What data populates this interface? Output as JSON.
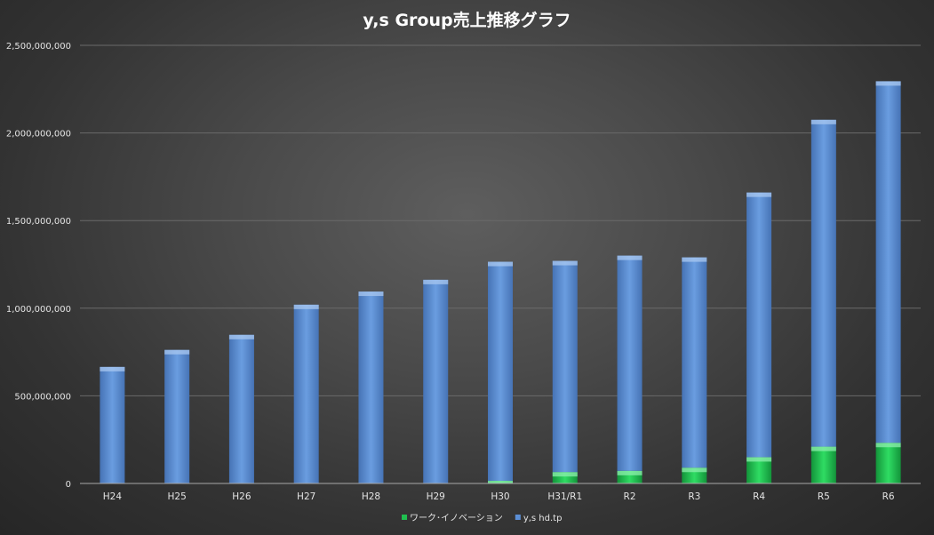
{
  "chart_data": {
    "type": "bar",
    "stacked": true,
    "title": "y,s Group売上推移グラフ",
    "xlabel": "",
    "ylabel": "",
    "ylim": [
      0,
      2500000000
    ],
    "y_ticks": [
      0,
      500000000,
      1000000000,
      1500000000,
      2000000000,
      2500000000
    ],
    "y_tick_labels": [
      "0",
      "500,000,000",
      "1,000,000,000",
      "1,500,000,000",
      "2,000,000,000",
      "2,500,000,000"
    ],
    "grid": true,
    "legend_position": "bottom",
    "categories": [
      "H24",
      "H25",
      "H26",
      "H27",
      "H28",
      "H29",
      "H30",
      "H31/R1",
      "R2",
      "R3",
      "R4",
      "R5",
      "R6"
    ],
    "series": [
      {
        "name": "ワーク･イノベーション",
        "color": "#1fbf4f",
        "values": [
          0,
          0,
          0,
          0,
          0,
          0,
          15000000,
          65000000,
          72000000,
          90000000,
          150000000,
          210000000,
          232000000
        ]
      },
      {
        "name": "y,s hd.tp",
        "color": "#5b8fd6",
        "values": [
          665000000,
          762000000,
          848000000,
          1020000000,
          1095000000,
          1162000000,
          1250000000,
          1205000000,
          1228000000,
          1200000000,
          1510000000,
          1865000000,
          2063000000
        ]
      }
    ]
  }
}
